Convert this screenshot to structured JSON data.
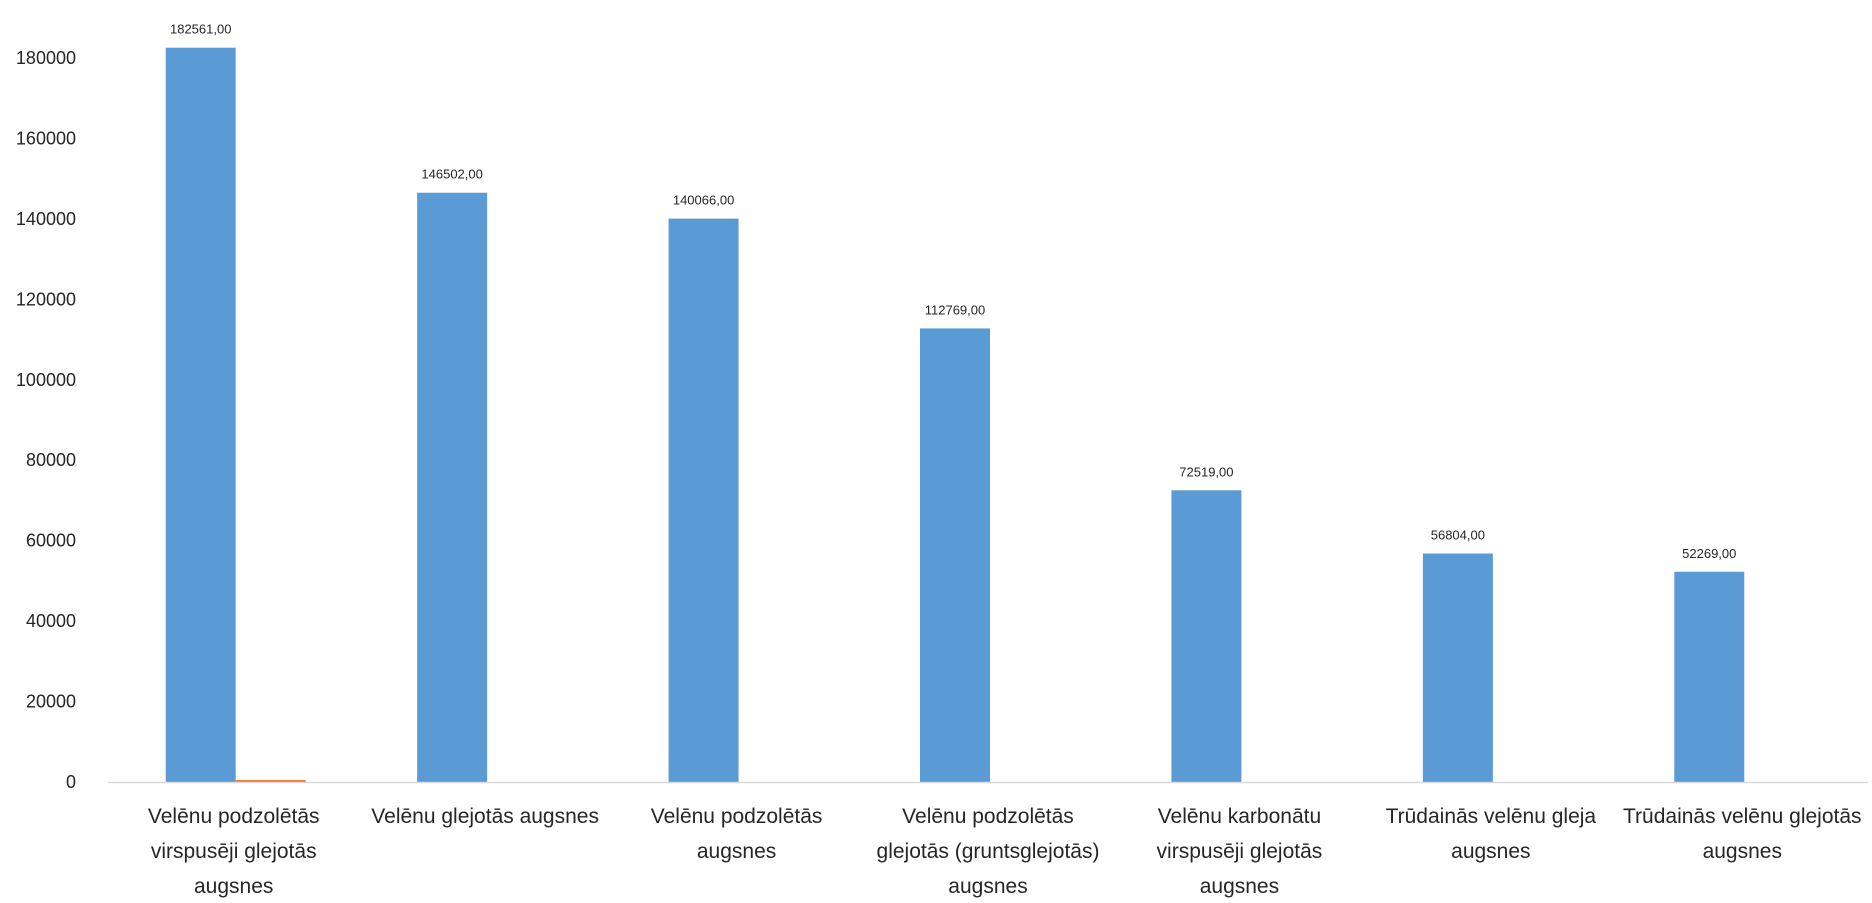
{
  "chart_data": {
    "type": "bar",
    "categories": [
      [
        "Velēnu podzolētās",
        "virspusēji glejotās",
        "augsnes"
      ],
      [
        "Velēnu glejotās augsnes"
      ],
      [
        "Velēnu podzolētās",
        "augsnes"
      ],
      [
        "Velēnu podzolētās",
        "glejotās (gruntsglejotās)",
        "augsnes"
      ],
      [
        "Velēnu karbonātu",
        "virspusēji glejotās",
        "augsnes"
      ],
      [
        "Trūdainās velēnu gleja",
        "augsnes"
      ],
      [
        "Trūdainās velēnu glejotās",
        "augsnes"
      ]
    ],
    "series": [
      {
        "values": [
          182561,
          146502,
          140066,
          112769,
          72519,
          56804,
          52269
        ],
        "labels": [
          "182561,00",
          "146502,00",
          "140066,00",
          "112769,00",
          "72519,00",
          "56804,00",
          "52269,00"
        ],
        "color": "#5b9bd5"
      },
      {
        "values": [
          150,
          0,
          0,
          0,
          0,
          0,
          0
        ],
        "color": "#ed7d31"
      }
    ],
    "yticks": [
      0,
      20000,
      40000,
      60000,
      80000,
      100000,
      120000,
      140000,
      160000,
      180000
    ],
    "ylim": [
      0,
      180000
    ],
    "grid": false,
    "legend": "none",
    "title": "",
    "xlabel": "",
    "ylabel": ""
  }
}
